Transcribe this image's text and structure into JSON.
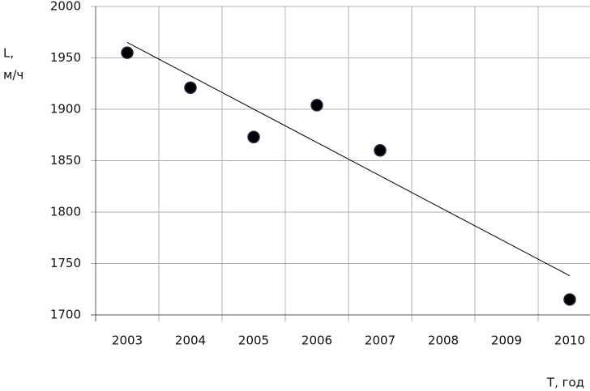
{
  "chart_data": {
    "type": "scatter",
    "y_label": [
      "L,",
      "м/ч"
    ],
    "x_label": "T, год",
    "categories": [
      "2003",
      "2004",
      "2005",
      "2006",
      "2007",
      "2008",
      "2009",
      "2010"
    ],
    "series": [
      {
        "color": "#000000",
        "values": [
          1955,
          1921,
          1873,
          1904,
          1860,
          null,
          null,
          1715
        ]
      }
    ],
    "trend": {
      "x": [
        "2003",
        "2010"
      ],
      "values": [
        1965,
        1738
      ],
      "color": "#000000"
    },
    "ylim": [
      1700,
      2000
    ],
    "yticks": [
      1700,
      1750,
      1800,
      1850,
      1900,
      1950,
      2000
    ],
    "grid": true
  }
}
